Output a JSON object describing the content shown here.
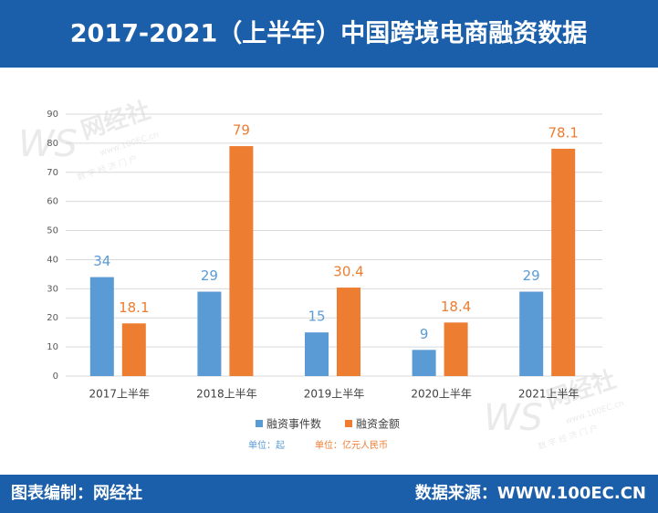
{
  "header": {
    "title": "2017-2021（上半年）中国跨境电商融资数据"
  },
  "chart_data": {
    "type": "bar",
    "categories": [
      "2017上半年",
      "2018上半年",
      "2019上半年",
      "2020上半年",
      "2021上半年"
    ],
    "series": [
      {
        "name": "融资事件数",
        "color": "#5b9bd5",
        "values": [
          34,
          29,
          15,
          9,
          29
        ]
      },
      {
        "name": "融资金额",
        "color": "#ed7d31",
        "values": [
          18.1,
          79,
          30.4,
          18.4,
          78.1
        ]
      }
    ],
    "ylim": [
      0,
      90
    ],
    "yticks": [
      0,
      10,
      20,
      30,
      40,
      50,
      60,
      70,
      80,
      90
    ],
    "grid": true,
    "legend": "bottom",
    "units": [
      "单位：起",
      "单位：亿元人民币"
    ]
  },
  "watermark": {
    "brand": "网经社",
    "url": "www.100EC.cn",
    "slogan": "数 字 经 济 门 户"
  },
  "footer": {
    "credit": "图表编制：网经社",
    "source": "数据来源：WWW.100EC.CN"
  }
}
